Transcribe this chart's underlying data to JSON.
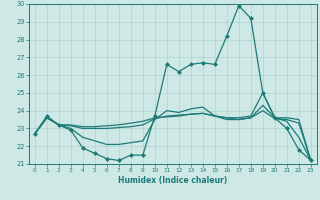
{
  "xlabel": "Humidex (Indice chaleur)",
  "xlim": [
    -0.5,
    23.5
  ],
  "ylim": [
    21,
    30
  ],
  "yticks": [
    21,
    22,
    23,
    24,
    25,
    26,
    27,
    28,
    29,
    30
  ],
  "xticks": [
    0,
    1,
    2,
    3,
    4,
    5,
    6,
    7,
    8,
    9,
    10,
    11,
    12,
    13,
    14,
    15,
    16,
    17,
    18,
    19,
    20,
    21,
    22,
    23
  ],
  "bg_color": "#cde8e5",
  "grid_color": "#aed4d0",
  "line_color": "#1e7b78",
  "lines": [
    {
      "x": [
        0,
        1,
        2,
        3,
        4,
        5,
        6,
        7,
        8,
        9,
        10,
        11,
        12,
        13,
        14,
        15,
        16,
        17,
        18,
        19,
        20,
        21,
        22,
        23
      ],
      "y": [
        22.7,
        23.7,
        23.2,
        22.9,
        21.9,
        21.6,
        21.3,
        21.2,
        21.5,
        21.5,
        23.7,
        26.6,
        26.2,
        26.6,
        26.7,
        26.6,
        28.2,
        29.9,
        29.2,
        25.0,
        23.6,
        23.0,
        21.8,
        21.2
      ],
      "marker": "D",
      "markersize": 2.0,
      "linewidth": 0.9
    },
    {
      "x": [
        0,
        1,
        2,
        3,
        4,
        5,
        6,
        7,
        8,
        9,
        10,
        11,
        12,
        13,
        14,
        15,
        16,
        17,
        18,
        19,
        20,
        21,
        22,
        23
      ],
      "y": [
        22.7,
        23.6,
        23.2,
        23.2,
        23.1,
        23.1,
        23.15,
        23.2,
        23.3,
        23.4,
        23.6,
        23.65,
        23.7,
        23.8,
        23.85,
        23.7,
        23.6,
        23.6,
        23.7,
        25.0,
        23.6,
        23.6,
        23.5,
        21.2
      ],
      "marker": null,
      "markersize": 0,
      "linewidth": 0.9
    },
    {
      "x": [
        0,
        1,
        2,
        3,
        4,
        5,
        6,
        7,
        8,
        9,
        10,
        11,
        12,
        13,
        14,
        15,
        16,
        17,
        18,
        19,
        20,
        21,
        22,
        23
      ],
      "y": [
        22.7,
        23.6,
        23.2,
        23.0,
        22.5,
        22.3,
        22.1,
        22.1,
        22.2,
        22.3,
        23.5,
        24.0,
        23.9,
        24.1,
        24.2,
        23.7,
        23.6,
        23.5,
        23.6,
        24.3,
        23.6,
        23.4,
        22.5,
        21.2
      ],
      "marker": null,
      "markersize": 0,
      "linewidth": 0.9
    },
    {
      "x": [
        0,
        1,
        2,
        3,
        4,
        5,
        6,
        7,
        8,
        9,
        10,
        11,
        12,
        13,
        14,
        15,
        16,
        17,
        18,
        19,
        20,
        21,
        22,
        23
      ],
      "y": [
        22.7,
        23.6,
        23.2,
        23.15,
        23.0,
        23.0,
        23.0,
        23.05,
        23.1,
        23.2,
        23.55,
        23.7,
        23.75,
        23.8,
        23.85,
        23.7,
        23.5,
        23.5,
        23.6,
        24.0,
        23.55,
        23.5,
        23.3,
        21.2
      ],
      "marker": null,
      "markersize": 0,
      "linewidth": 0.9
    }
  ]
}
